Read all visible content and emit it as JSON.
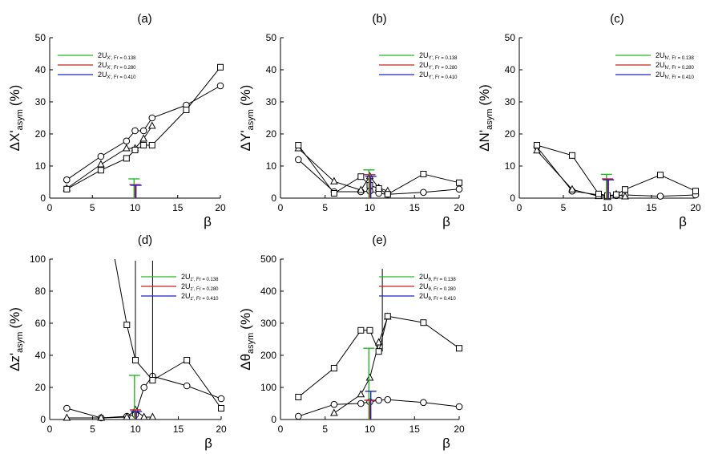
{
  "chart_data": [
    {
      "type": "line",
      "panel_label": "(a)",
      "xlabel": "β",
      "ylabel": "ΔX'asym (%)",
      "ylabel_main": "ΔX'",
      "ylabel_sub": "asym",
      "ylabel_unit": "(%)",
      "xlim": [
        0,
        20
      ],
      "ylim": [
        0,
        50
      ],
      "xticks": [
        "0",
        "5",
        "10",
        "15",
        "20"
      ],
      "yticks": [
        "0",
        "10",
        "20",
        "30",
        "40",
        "50"
      ],
      "grid": false,
      "legend_position": "top-left",
      "legend": [
        {
          "main": "2U",
          "sub": "X', Fr = 0.138",
          "color": "#22bb22"
        },
        {
          "main": "2U",
          "sub": "X', Fr = 0.280",
          "color": "#cc2222"
        },
        {
          "main": "2U",
          "sub": "X', Fr = 0.410",
          "color": "#2222cc"
        }
      ],
      "series": [
        {
          "marker": "circle",
          "x": [
            2,
            6,
            9,
            10,
            11,
            12,
            16,
            20
          ],
          "y": [
            5.7,
            13,
            17.8,
            21,
            21,
            25,
            29,
            35
          ]
        },
        {
          "marker": "triangle",
          "x": [
            2,
            6,
            9,
            10,
            11,
            12
          ],
          "y": [
            3,
            10.5,
            15.5,
            15.5,
            18.5,
            22.5
          ]
        },
        {
          "marker": "square",
          "x": [
            2,
            6,
            9,
            10,
            11,
            12,
            16,
            20
          ],
          "y": [
            2.8,
            8.7,
            12.4,
            15,
            16.5,
            16.5,
            27.5,
            40.8
          ]
        }
      ],
      "error_bars": [
        {
          "color": "#22bb22",
          "x": 10,
          "low": 0,
          "high": 6
        },
        {
          "color": "#cc2222",
          "x": 10,
          "low": 0,
          "high": 4.2
        },
        {
          "color": "#2222cc",
          "x": 10,
          "low": 0,
          "high": 4
        }
      ]
    },
    {
      "type": "line",
      "panel_label": "(b)",
      "xlabel": "β",
      "ylabel": "ΔY'asym (%)",
      "ylabel_main": "ΔY'",
      "ylabel_sub": "asym",
      "ylabel_unit": "(%)",
      "xlim": [
        0,
        20
      ],
      "ylim": [
        0,
        50
      ],
      "xticks": [
        "0",
        "5",
        "10",
        "15",
        "20"
      ],
      "yticks": [
        "0",
        "10",
        "20",
        "30",
        "40",
        "50"
      ],
      "grid": false,
      "legend_position": "top-right",
      "legend": [
        {
          "main": "2U",
          "sub": "Y', Fr = 0.138",
          "color": "#22bb22"
        },
        {
          "main": "2U",
          "sub": "Y', Fr = 0.280",
          "color": "#cc2222"
        },
        {
          "main": "2U",
          "sub": "Y', Fr = 0.410",
          "color": "#2222cc"
        }
      ],
      "series": [
        {
          "marker": "circle",
          "x": [
            2,
            6,
            9,
            10,
            11,
            12,
            16,
            20
          ],
          "y": [
            12,
            2,
            2,
            2.2,
            1.5,
            1.2,
            1.8,
            2.8
          ]
        },
        {
          "marker": "triangle",
          "x": [
            2,
            6,
            9,
            10,
            11,
            12
          ],
          "y": [
            15.5,
            5.2,
            2.5,
            6.8,
            3.2,
            2.2
          ]
        },
        {
          "marker": "square",
          "x": [
            2,
            6,
            9,
            10,
            11,
            12,
            16,
            20
          ],
          "y": [
            16.5,
            1.5,
            6.7,
            4,
            3,
            1.2,
            7.5,
            4.8
          ]
        }
      ],
      "error_bars": [
        {
          "color": "#22bb22",
          "x": 10,
          "low": 0,
          "high": 8.8
        },
        {
          "color": "#cc2222",
          "x": 10,
          "low": 0,
          "high": 7.3
        },
        {
          "color": "#2222cc",
          "x": 10,
          "low": 0,
          "high": 6.8
        }
      ]
    },
    {
      "type": "line",
      "panel_label": "(c)",
      "xlabel": "β",
      "ylabel": "ΔN'asym (%)",
      "ylabel_main": "ΔN'",
      "ylabel_sub": "asym",
      "ylabel_unit": "(%)",
      "xlim": [
        0,
        20
      ],
      "ylim": [
        0,
        50
      ],
      "xticks": [
        "0",
        "5",
        "10",
        "15",
        "20"
      ],
      "yticks": [
        "0",
        "10",
        "20",
        "30",
        "40",
        "50"
      ],
      "grid": false,
      "legend_position": "top-right",
      "legend": [
        {
          "main": "2U",
          "sub": "N', Fr = 0.138",
          "color": "#22bb22"
        },
        {
          "main": "2U",
          "sub": "N', Fr = 0.280",
          "color": "#cc2222"
        },
        {
          "main": "2U",
          "sub": "N', Fr = 0.410",
          "color": "#2222cc"
        }
      ],
      "series": [
        {
          "marker": "circle",
          "x": [
            2,
            6,
            9,
            10,
            11,
            12,
            16,
            20
          ],
          "y": [
            16,
            2.2,
            1,
            0.8,
            0.8,
            1,
            0.6,
            1
          ]
        },
        {
          "marker": "triangle",
          "x": [
            2,
            6,
            9,
            10,
            11,
            12
          ],
          "y": [
            14.8,
            2.7,
            0.6,
            0.3,
            1.2,
            0.5
          ]
        },
        {
          "marker": "square",
          "x": [
            2,
            6,
            9,
            10,
            11,
            12,
            16,
            20
          ],
          "y": [
            16.5,
            13.3,
            1.3,
            0.8,
            1.1,
            2.7,
            7.2,
            2.2
          ]
        }
      ],
      "error_bars": [
        {
          "color": "#22bb22",
          "x": 10,
          "low": 0,
          "high": 7.4
        },
        {
          "color": "#cc2222",
          "x": 10,
          "low": 0,
          "high": 6
        },
        {
          "color": "#2222cc",
          "x": 10,
          "low": 0,
          "high": 5.7
        }
      ]
    },
    {
      "type": "line",
      "panel_label": "(d)",
      "xlabel": "β",
      "ylabel": "Δz'asym (%)",
      "ylabel_main": "Δz'",
      "ylabel_sub": "asym",
      "ylabel_unit": "(%)",
      "xlim": [
        0,
        20
      ],
      "ylim": [
        0,
        100
      ],
      "xticks": [
        "0",
        "5",
        "10",
        "15",
        "20"
      ],
      "yticks": [
        "0",
        "20",
        "40",
        "60",
        "80",
        "100"
      ],
      "grid": false,
      "legend_position": "top-right",
      "legend": [
        {
          "main": "2U",
          "sub": "z', Fr = 0.138",
          "color": "#22bb22"
        },
        {
          "main": "2U",
          "sub": "z', Fr = 0.280",
          "color": "#cc2222"
        },
        {
          "main": "2U",
          "sub": "z', Fr = 0.410",
          "color": "#2222cc"
        }
      ],
      "series": [
        {
          "marker": "circle",
          "x": [
            2,
            6,
            9,
            10,
            11,
            12,
            16,
            20
          ],
          "y": [
            7,
            1,
            2,
            3,
            20,
            27,
            21,
            13
          ]
        },
        {
          "marker": "triangle",
          "x": [
            2,
            6,
            9,
            10,
            11,
            12
          ],
          "y": [
            1,
            1,
            1.5,
            6,
            1.5,
            1.5
          ]
        },
        {
          "marker": "square",
          "x": [
            9,
            10,
            12,
            16,
            20
          ],
          "y": [
            59,
            37,
            24.5,
            37,
            7
          ],
          "extra_line": {
            "from_x": 7.6,
            "from_y": 100,
            "to_index": 0
          },
          "spike": {
            "x": 10,
            "from_y": 37,
            "to_y": 100
          },
          "spike2": {
            "x": 12,
            "from_y": 25,
            "to_y": 100
          }
        }
      ],
      "error_bars": [
        {
          "color": "#22bb22",
          "x": 10,
          "low": 0,
          "high": 27.5
        },
        {
          "color": "#cc2222",
          "x": 10,
          "low": 0,
          "high": 6
        },
        {
          "color": "#2222cc",
          "x": 10,
          "low": 0,
          "high": 5
        }
      ]
    },
    {
      "type": "line",
      "panel_label": "(e)",
      "xlabel": "β",
      "ylabel": "Δθasym (%)",
      "ylabel_main": "Δθ",
      "ylabel_sub": "asym",
      "ylabel_unit": "(%)",
      "xlim": [
        0,
        20
      ],
      "ylim": [
        0,
        500
      ],
      "xticks": [
        "0",
        "5",
        "10",
        "15",
        "20"
      ],
      "yticks": [
        "0",
        "100",
        "200",
        "300",
        "400",
        "500"
      ],
      "grid": false,
      "legend_position": "top-right",
      "legend": [
        {
          "main": "2U",
          "sub": "θ, Fr = 0.138",
          "color": "#22bb22"
        },
        {
          "main": "2U",
          "sub": "θ, Fr = 0.280",
          "color": "#cc2222"
        },
        {
          "main": "2U",
          "sub": "θ, Fr = 0.410",
          "color": "#2222cc"
        }
      ],
      "series": [
        {
          "marker": "circle",
          "x": [
            2,
            6,
            9,
            10,
            11,
            12,
            16,
            20
          ],
          "y": [
            10,
            47,
            50,
            55,
            60,
            62,
            53,
            40
          ]
        },
        {
          "marker": "triangle",
          "x": [
            6,
            9,
            10,
            11,
            12
          ],
          "y": [
            20,
            78,
            130,
            240,
            320
          ]
        },
        {
          "marker": "square",
          "x": [
            2,
            6,
            9,
            10,
            11,
            12,
            16,
            20
          ],
          "y": [
            70,
            160,
            278,
            278,
            212,
            322,
            302,
            222
          ],
          "spike": {
            "x": 11.4,
            "from_y": 212,
            "to_y": 500
          }
        }
      ],
      "error_bars": [
        {
          "color": "#22bb22",
          "x": 10,
          "low": 0,
          "high": 222
        },
        {
          "color": "#cc2222",
          "x": 10,
          "low": 0,
          "high": 60
        },
        {
          "color": "#2222cc",
          "x": 10,
          "low": 0,
          "high": 88
        }
      ]
    }
  ]
}
